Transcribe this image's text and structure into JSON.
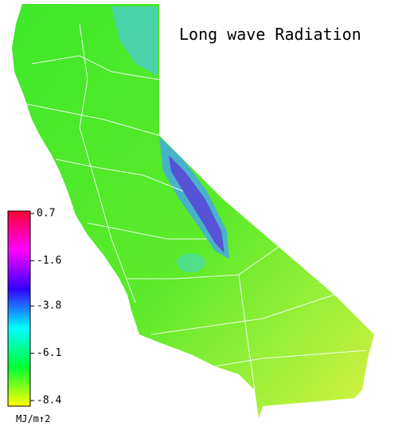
{
  "title": "Long wave Radiation",
  "colorbar": {
    "lim": [
      -8.4,
      0.7
    ],
    "ticks": [
      0.7,
      -1.6,
      -3.8,
      -6.1,
      -8.4
    ],
    "unit": "MJ/m↑2",
    "colors": [
      "#ff0033",
      "#ff00ff",
      "#3300ff",
      "#00ffff",
      "#00ff33",
      "#ffff00"
    ]
  }
}
